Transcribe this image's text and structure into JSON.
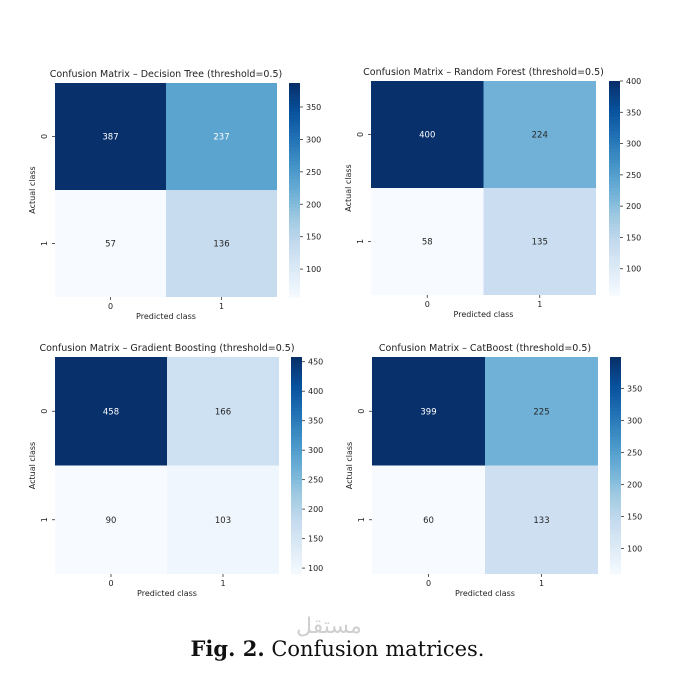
{
  "figure": {
    "caption_label": "Fig. 2.",
    "caption_text": "Confusion matrices.",
    "watermark": "مستقل"
  },
  "colors": {
    "low": "#f7fbff",
    "high": "#08306b",
    "dark_text": "#ffffff",
    "light_text": "#262626"
  },
  "chart_data": [
    {
      "type": "heatmap",
      "title": "Confusion Matrix – Decision Tree (threshold=0.5)",
      "xlabel": "Predicted class",
      "ylabel": "Actual class",
      "x_categories": [
        "0",
        "1"
      ],
      "y_categories": [
        "0",
        "1"
      ],
      "values": [
        [
          387,
          237
        ],
        [
          57,
          136
        ]
      ],
      "colorbar": {
        "range": [
          57,
          387
        ],
        "ticks": [
          100,
          150,
          200,
          250,
          300,
          350
        ]
      }
    },
    {
      "type": "heatmap",
      "title": "Confusion Matrix – Random Forest (threshold=0.5)",
      "xlabel": "Predicted class",
      "ylabel": "Actual class",
      "x_categories": [
        "0",
        "1"
      ],
      "y_categories": [
        "0",
        "1"
      ],
      "values": [
        [
          400,
          224
        ],
        [
          58,
          135
        ]
      ],
      "colorbar": {
        "range": [
          58,
          400
        ],
        "ticks": [
          100,
          150,
          200,
          250,
          300,
          350,
          400
        ]
      }
    },
    {
      "type": "heatmap",
      "title": "Confusion Matrix – Gradient Boosting (threshold=0.5)",
      "xlabel": "Predicted class",
      "ylabel": "Actual class",
      "x_categories": [
        "0",
        "1"
      ],
      "y_categories": [
        "0",
        "1"
      ],
      "values": [
        [
          458,
          166
        ],
        [
          90,
          103
        ]
      ],
      "colorbar": {
        "range": [
          90,
          458
        ],
        "ticks": [
          100,
          150,
          200,
          250,
          300,
          350,
          400,
          450
        ]
      }
    },
    {
      "type": "heatmap",
      "title": "Confusion Matrix – CatBoost (threshold=0.5)",
      "xlabel": "Predicted class",
      "ylabel": "Actual class",
      "x_categories": [
        "0",
        "1"
      ],
      "y_categories": [
        "0",
        "1"
      ],
      "values": [
        [
          399,
          225
        ],
        [
          60,
          133
        ]
      ],
      "colorbar": {
        "range": [
          60,
          399
        ],
        "ticks": [
          100,
          150,
          200,
          250,
          300,
          350
        ]
      }
    }
  ]
}
